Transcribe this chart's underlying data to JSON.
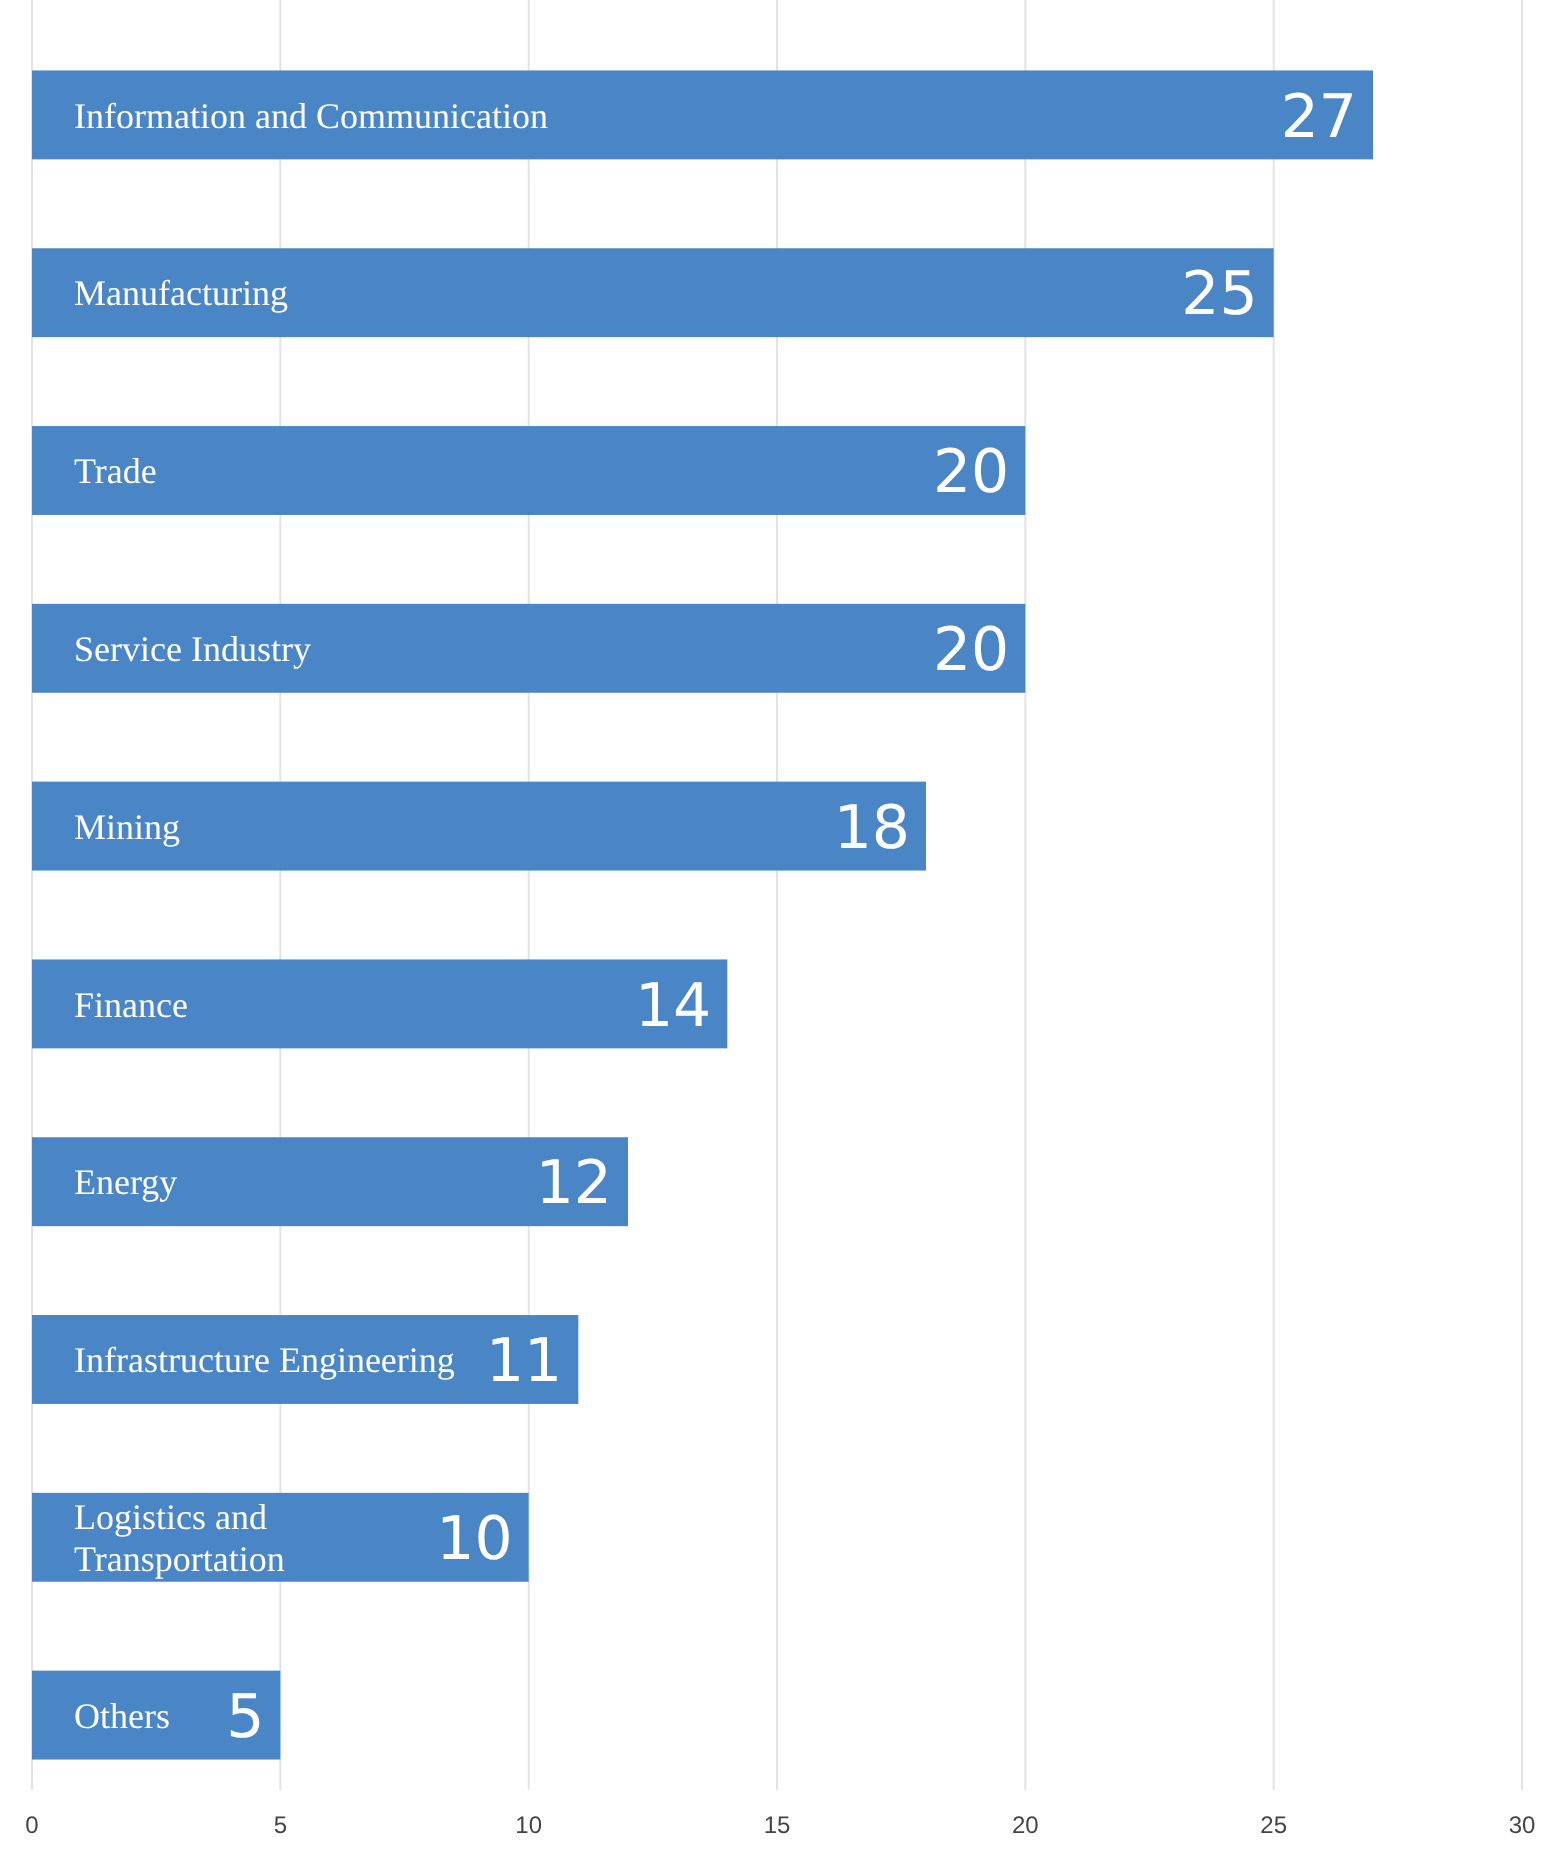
{
  "chart_data": {
    "type": "bar",
    "orientation": "horizontal",
    "categories": [
      "Information and Communication",
      "Manufacturing",
      "Trade",
      "Service Industry",
      "Mining",
      "Finance",
      "Energy",
      "Infrastructure Engineering",
      "Logistics and Transportation",
      "Others"
    ],
    "values": [
      27,
      25,
      20,
      20,
      18,
      14,
      12,
      11,
      10,
      5
    ],
    "color": "#4a86c5",
    "xlim": [
      0,
      30
    ],
    "xticks": [
      0,
      5,
      10,
      15,
      20,
      25,
      30
    ],
    "grid": "x",
    "data_labels": true
  }
}
